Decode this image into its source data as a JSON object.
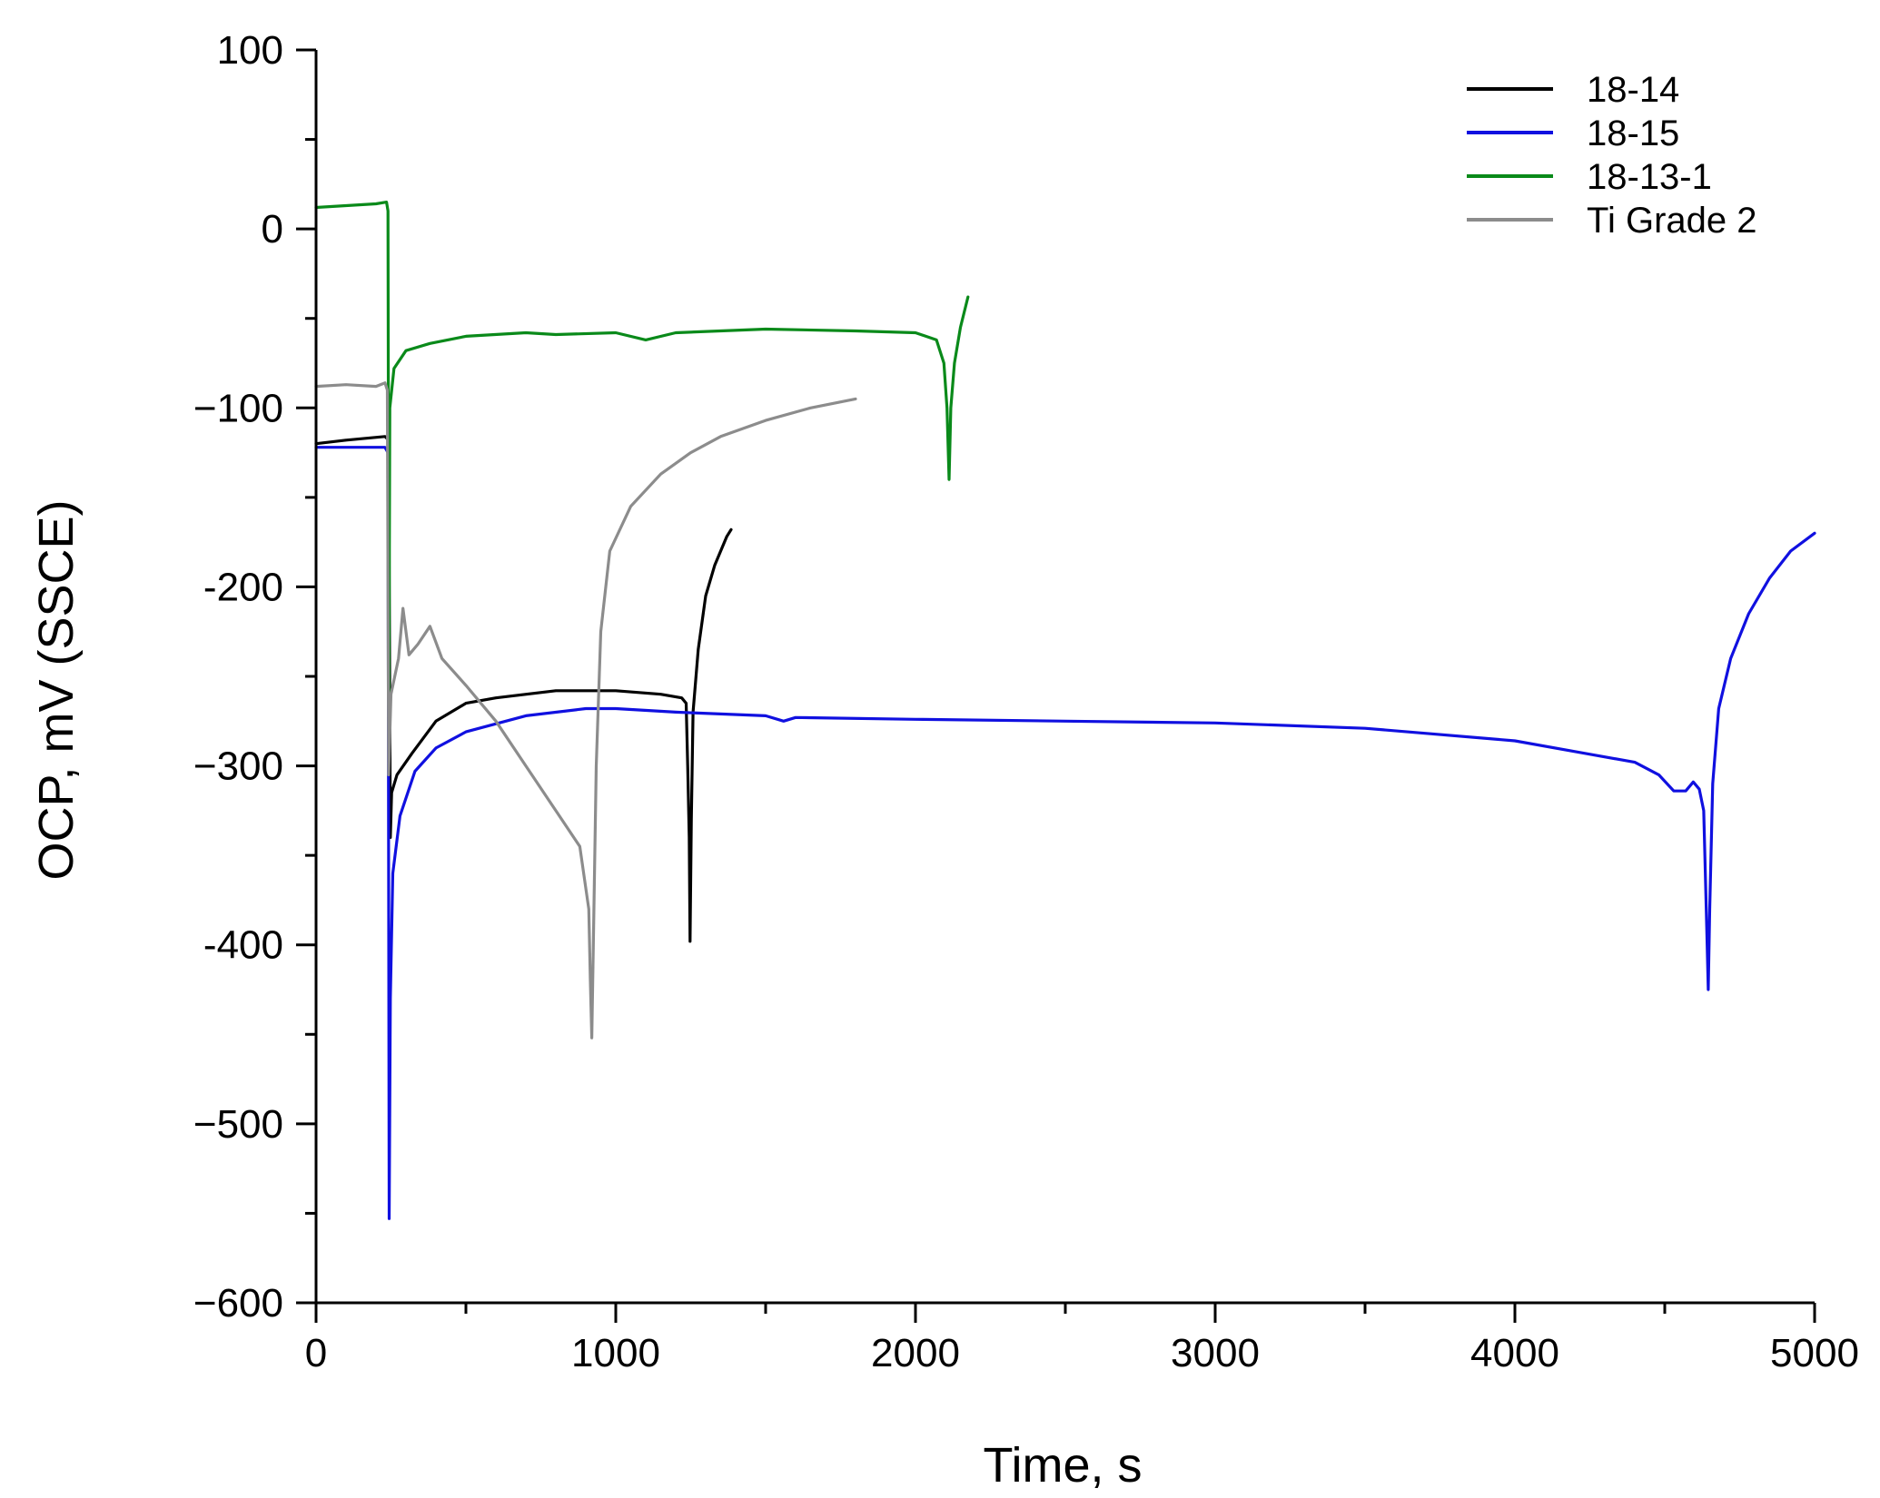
{
  "chart_data": {
    "type": "line",
    "xlabel": "Time, s",
    "ylabel": "OCP, mV (SSCE)",
    "xlim": [
      0,
      5000
    ],
    "ylim": [
      -600,
      100
    ],
    "xticks": [
      0,
      1000,
      2000,
      3000,
      4000,
      5000
    ],
    "yticks": [
      100,
      0,
      -100,
      -200,
      -300,
      -400,
      -500,
      -600
    ],
    "xtick_labels": [
      "0",
      "1000",
      "2000",
      "3000",
      "4000",
      "5000"
    ],
    "ytick_labels": [
      "100",
      "0",
      "−100",
      "-200",
      "−300",
      "-400",
      "−500",
      "−600"
    ],
    "grid": false,
    "legend_position": "top-right",
    "series": [
      {
        "name": "18-14",
        "color": "#000000",
        "points": [
          [
            0,
            -120
          ],
          [
            100,
            -118
          ],
          [
            230,
            -116
          ],
          [
            242,
            -118
          ],
          [
            248,
            -340
          ],
          [
            252,
            -315
          ],
          [
            270,
            -305
          ],
          [
            320,
            -293
          ],
          [
            400,
            -275
          ],
          [
            500,
            -265
          ],
          [
            600,
            -262
          ],
          [
            800,
            -258
          ],
          [
            1000,
            -258
          ],
          [
            1150,
            -260
          ],
          [
            1220,
            -262
          ],
          [
            1235,
            -265
          ],
          [
            1240,
            -300
          ],
          [
            1245,
            -340
          ],
          [
            1248,
            -398
          ],
          [
            1252,
            -330
          ],
          [
            1258,
            -270
          ],
          [
            1275,
            -235
          ],
          [
            1300,
            -205
          ],
          [
            1330,
            -188
          ],
          [
            1370,
            -172
          ],
          [
            1385,
            -168
          ]
        ]
      },
      {
        "name": "18-15",
        "color": "#1010e0",
        "points": [
          [
            0,
            -122
          ],
          [
            100,
            -122
          ],
          [
            230,
            -122
          ],
          [
            240,
            -125
          ],
          [
            244,
            -553
          ],
          [
            248,
            -430
          ],
          [
            256,
            -360
          ],
          [
            280,
            -328
          ],
          [
            330,
            -303
          ],
          [
            400,
            -290
          ],
          [
            500,
            -281
          ],
          [
            700,
            -272
          ],
          [
            900,
            -268
          ],
          [
            1000,
            -268
          ],
          [
            1200,
            -270
          ],
          [
            1500,
            -272
          ],
          [
            1560,
            -275
          ],
          [
            1600,
            -273
          ],
          [
            2000,
            -274
          ],
          [
            2500,
            -275
          ],
          [
            3000,
            -276
          ],
          [
            3500,
            -279
          ],
          [
            4000,
            -286
          ],
          [
            4200,
            -292
          ],
          [
            4400,
            -298
          ],
          [
            4480,
            -305
          ],
          [
            4530,
            -314
          ],
          [
            4570,
            -314
          ],
          [
            4595,
            -309
          ],
          [
            4615,
            -313
          ],
          [
            4630,
            -325
          ],
          [
            4640,
            -390
          ],
          [
            4645,
            -425
          ],
          [
            4650,
            -380
          ],
          [
            4660,
            -310
          ],
          [
            4680,
            -268
          ],
          [
            4720,
            -240
          ],
          [
            4780,
            -215
          ],
          [
            4850,
            -195
          ],
          [
            4920,
            -180
          ],
          [
            5000,
            -170
          ]
        ]
      },
      {
        "name": "18-13-1",
        "color": "#0a8a1a",
        "points": [
          [
            0,
            12
          ],
          [
            100,
            13
          ],
          [
            200,
            14
          ],
          [
            235,
            15
          ],
          [
            240,
            10
          ],
          [
            243,
            -260
          ],
          [
            246,
            -100
          ],
          [
            260,
            -78
          ],
          [
            300,
            -68
          ],
          [
            380,
            -64
          ],
          [
            500,
            -60
          ],
          [
            700,
            -58
          ],
          [
            800,
            -59
          ],
          [
            1000,
            -58
          ],
          [
            1100,
            -62
          ],
          [
            1200,
            -58
          ],
          [
            1500,
            -56
          ],
          [
            1800,
            -57
          ],
          [
            2000,
            -58
          ],
          [
            2070,
            -62
          ],
          [
            2095,
            -75
          ],
          [
            2105,
            -100
          ],
          [
            2112,
            -140
          ],
          [
            2118,
            -100
          ],
          [
            2130,
            -75
          ],
          [
            2150,
            -55
          ],
          [
            2175,
            -38
          ]
        ]
      },
      {
        "name": "Ti Grade 2",
        "color": "#8c8c8c",
        "points": [
          [
            0,
            -88
          ],
          [
            100,
            -87
          ],
          [
            200,
            -88
          ],
          [
            230,
            -86
          ],
          [
            238,
            -90
          ],
          [
            242,
            -305
          ],
          [
            250,
            -260
          ],
          [
            275,
            -240
          ],
          [
            290,
            -212
          ],
          [
            310,
            -238
          ],
          [
            340,
            -232
          ],
          [
            380,
            -222
          ],
          [
            420,
            -240
          ],
          [
            500,
            -255
          ],
          [
            600,
            -275
          ],
          [
            700,
            -300
          ],
          [
            800,
            -325
          ],
          [
            880,
            -345
          ],
          [
            910,
            -380
          ],
          [
            915,
            -420
          ],
          [
            920,
            -452
          ],
          [
            925,
            -400
          ],
          [
            935,
            -300
          ],
          [
            950,
            -225
          ],
          [
            980,
            -180
          ],
          [
            1050,
            -155
          ],
          [
            1150,
            -137
          ],
          [
            1250,
            -125
          ],
          [
            1350,
            -116
          ],
          [
            1500,
            -107
          ],
          [
            1650,
            -100
          ],
          [
            1800,
            -95
          ]
        ]
      }
    ]
  }
}
